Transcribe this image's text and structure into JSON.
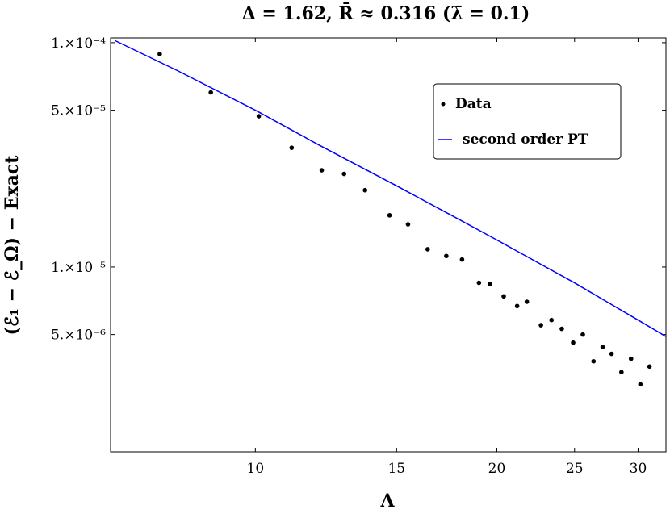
{
  "chart_data": {
    "type": "scatter",
    "title": "Δ = 1.62, R̄ ≈ 0.316 (λ̄ = 0.1)",
    "xlabel": "Λ",
    "ylabel": "(ℰ₁ − ℰ_Ω) − Exact",
    "x_scale": "log",
    "y_scale": "log",
    "xlim": [
      6.6,
      32.5
    ],
    "ylim": [
      1.5e-06,
      0.000105
    ],
    "x_ticks": [
      {
        "value": 10,
        "label": "10"
      },
      {
        "value": 15,
        "label": "15"
      },
      {
        "value": 20,
        "label": "20"
      },
      {
        "value": 25,
        "label": "25"
      },
      {
        "value": 30,
        "label": "30"
      }
    ],
    "y_ticks": [
      {
        "value": 0.0001,
        "label": "1.×10⁻⁴"
      },
      {
        "value": 5e-05,
        "label": "5.×10⁻⁵"
      },
      {
        "value": 1e-05,
        "label": "1.×10⁻⁵"
      },
      {
        "value": 5e-06,
        "label": "5.×10⁻⁶"
      }
    ],
    "legend": {
      "position": "top-right",
      "entries": [
        "Data",
        "second order PT"
      ]
    },
    "series": [
      {
        "name": "Data",
        "kind": "points",
        "color": "#000000",
        "points": [
          [
            7.6,
            8.9e-05
          ],
          [
            8.8,
            6e-05
          ],
          [
            10.1,
            4.7e-05
          ],
          [
            11.1,
            3.4e-05
          ],
          [
            12.1,
            2.7e-05
          ],
          [
            12.9,
            2.6e-05
          ],
          [
            13.7,
            2.2e-05
          ],
          [
            14.7,
            1.7e-05
          ],
          [
            15.5,
            1.55e-05
          ],
          [
            16.4,
            1.2e-05
          ],
          [
            17.3,
            1.12e-05
          ],
          [
            18.1,
            1.08e-05
          ],
          [
            19.0,
            8.5e-06
          ],
          [
            19.6,
            8.4e-06
          ],
          [
            20.4,
            7.4e-06
          ],
          [
            21.2,
            6.7e-06
          ],
          [
            21.8,
            7e-06
          ],
          [
            22.7,
            5.5e-06
          ],
          [
            23.4,
            5.8e-06
          ],
          [
            24.1,
            5.3e-06
          ],
          [
            24.9,
            4.6e-06
          ],
          [
            25.6,
            5e-06
          ],
          [
            26.4,
            3.8e-06
          ],
          [
            27.1,
            4.4e-06
          ],
          [
            27.8,
            4.1e-06
          ],
          [
            28.6,
            3.4e-06
          ],
          [
            29.4,
            3.9e-06
          ],
          [
            30.2,
            3e-06
          ],
          [
            31.0,
            3.6e-06
          ]
        ]
      },
      {
        "name": "second order PT",
        "kind": "line",
        "color": "#0000ff",
        "points": [
          [
            6.69,
            0.000102
          ],
          [
            8.0,
            7.5e-05
          ],
          [
            10.0,
            5e-05
          ],
          [
            12.0,
            3.5e-05
          ],
          [
            15.0,
            2.3e-05
          ],
          [
            18.0,
            1.62e-05
          ],
          [
            20.0,
            1.32e-05
          ],
          [
            25.0,
            8.5e-06
          ],
          [
            28.0,
            6.7e-06
          ],
          [
            30.0,
            5.8e-06
          ],
          [
            32.5,
            4.9e-06
          ]
        ]
      }
    ]
  }
}
